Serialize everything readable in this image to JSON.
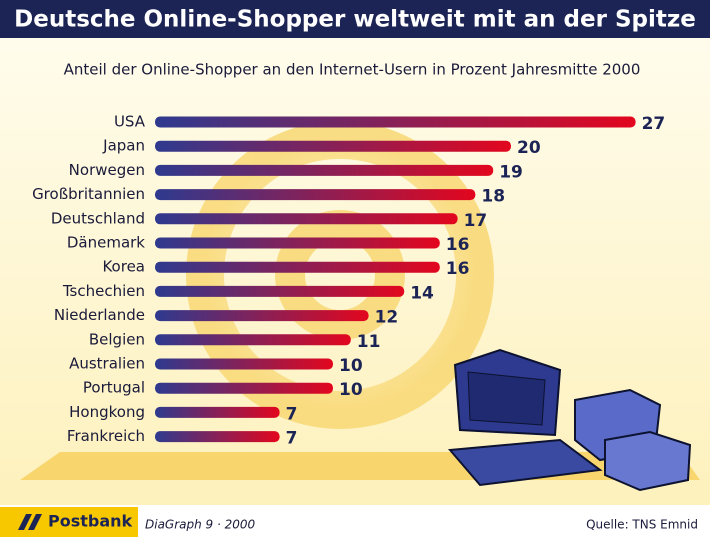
{
  "chart_data": {
    "type": "bar",
    "orientation": "horizontal",
    "title": "Deutsche Online-Shopper weltweit mit an der Spitze",
    "subtitle": "Anteil der Online-Shopper an den Internet-Usern in Prozent Jahresmitte 2000",
    "categories": [
      "USA",
      "Japan",
      "Norwegen",
      "Großbritannien",
      "Deutschland",
      "Dänemark",
      "Korea",
      "Tschechien",
      "Niederlande",
      "Belgien",
      "Australien",
      "Portugal",
      "Hongkong",
      "Frankreich"
    ],
    "values": [
      27,
      20,
      19,
      18,
      17,
      16,
      16,
      14,
      12,
      11,
      10,
      10,
      7,
      7
    ],
    "gradient": [
      "#2e3a8f",
      "#e3061e"
    ],
    "brand": "Postbank",
    "credit": "DiaGraph 9 · 2000",
    "source": "Quelle: TNS Emnid"
  }
}
